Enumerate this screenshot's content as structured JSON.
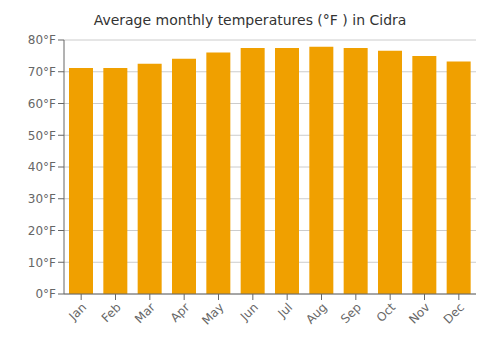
{
  "chart_data": {
    "type": "bar",
    "title": "Average monthly temperatures (°F ) in Cidra",
    "categories": [
      "Jan",
      "Feb",
      "Mar",
      "Apr",
      "May",
      "Jun",
      "Jul",
      "Aug",
      "Sep",
      "Oct",
      "Nov",
      "Dec"
    ],
    "values": [
      71.2,
      71.2,
      72.5,
      74.1,
      76.1,
      77.5,
      77.5,
      77.9,
      77.5,
      76.6,
      75.0,
      73.2
    ],
    "color": "#F0A000",
    "ylim": [
      0,
      80
    ],
    "yticks": [
      {
        "value": 0,
        "label": "0°F"
      },
      {
        "value": 10,
        "label": "10°F"
      },
      {
        "value": 20,
        "label": "20°F"
      },
      {
        "value": 30,
        "label": "30°F"
      },
      {
        "value": 40,
        "label": "40°F"
      },
      {
        "value": 50,
        "label": "50°F"
      },
      {
        "value": 60,
        "label": "60°F"
      },
      {
        "value": 70,
        "label": "70°F"
      },
      {
        "value": 80,
        "label": "80°F"
      }
    ],
    "grid": true
  }
}
